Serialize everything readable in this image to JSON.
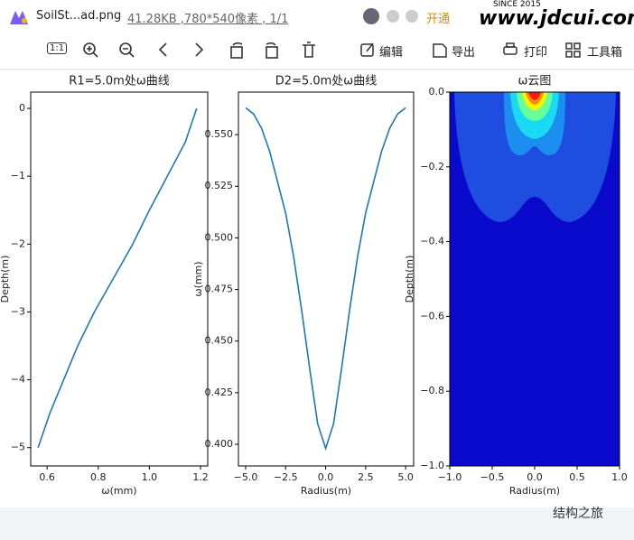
{
  "app": {
    "filename": "SoilSt...ad.png",
    "info": "41.28KB ,780*540像素 , 1/1",
    "open": "开通",
    "since": "SINCE 2015",
    "watermark": "www.jdcui.com"
  },
  "toolbar": {
    "zoom": "1:1",
    "edit": "编辑",
    "export": "导出",
    "print": "打印",
    "tools": "工具箱"
  },
  "footer": "结构之旅",
  "chart_data": [
    {
      "type": "line",
      "title": "R1=5.0m处ω曲线",
      "xlabel": "ω(mm)",
      "ylabel": "Depth(m)",
      "color": "#1f77b4",
      "x": [
        1.185,
        1.14,
        1.07,
        1.0,
        0.935,
        0.86,
        0.785,
        0.72,
        0.665,
        0.61,
        0.565
      ],
      "values": [
        0,
        -0.5,
        -1,
        -1.5,
        -2,
        -2.5,
        -3,
        -3.5,
        -4,
        -4.5,
        -5
      ],
      "xlim": [
        0.536,
        1.228
      ],
      "xticks": [
        0.6,
        0.8,
        {
          "value": 1,
          "label": "1.0"
        },
        1.2
      ],
      "ylim": [
        -5.27,
        0.24
      ],
      "yticks": [
        0,
        {
          "value": -1,
          "label": "−1"
        },
        {
          "value": -2,
          "label": "−2"
        },
        {
          "value": -3,
          "label": "−3"
        },
        {
          "value": -4,
          "label": "−4"
        },
        {
          "value": -5,
          "label": "−5"
        }
      ]
    },
    {
      "type": "line",
      "title": "D2=5.0m处ω曲线",
      "xlabel": "Radius(m)",
      "ylabel": "ω(mm)",
      "color": "#1f77b4",
      "x": [
        -5,
        -4.5,
        -4,
        -3.5,
        -3,
        -2.5,
        -2,
        -1.5,
        -1,
        -0.5,
        0,
        0.5,
        1,
        1.5,
        2,
        2.5,
        3,
        3.5,
        4,
        4.5,
        5
      ],
      "values": [
        0.563,
        0.56,
        0.553,
        0.542,
        0.527,
        0.512,
        0.491,
        0.465,
        0.437,
        0.41,
        0.398,
        0.41,
        0.437,
        0.465,
        0.491,
        0.512,
        0.527,
        0.542,
        0.553,
        0.56,
        0.563
      ],
      "xlim": [
        -5.45,
        5.5
      ],
      "xticks": [
        {
          "value": -5,
          "label": "−5.0"
        },
        {
          "value": -2.5,
          "label": "−2.5"
        },
        {
          "value": 0,
          "label": "0.0"
        },
        {
          "value": 2.5,
          "label": "2.5"
        },
        {
          "value": 5,
          "label": "5.0"
        }
      ],
      "ylim": [
        0.3895,
        0.5706
      ],
      "yticks": [
        {
          "value": 0.4,
          "label": "0.400"
        },
        0.425,
        {
          "value": 0.45,
          "label": "0.450"
        },
        0.475,
        {
          "value": 0.5,
          "label": "0.500"
        },
        0.525,
        {
          "value": 0.55,
          "label": "0.550"
        }
      ]
    },
    {
      "type": "contour",
      "title": "ω云图",
      "xlabel": "Radius(m)",
      "ylabel": "Depth(m)",
      "background": "#0a0acc",
      "colors": [
        "#1f4de0",
        "#1c8ef0",
        "#19d9f5",
        "#66ff99",
        "#f5f500",
        "#ff8a00",
        "#ff1a00"
      ],
      "xlim": [
        -1,
        1
      ],
      "xticks": [
        {
          "value": -1,
          "label": "−1.0"
        },
        {
          "value": -0.5,
          "label": "−0.5"
        },
        {
          "value": 0,
          "label": "0.0"
        },
        0.5,
        {
          "value": 1,
          "label": "1.0"
        }
      ],
      "ylim": [
        -1,
        0
      ],
      "yticks": [
        {
          "value": 0,
          "label": "0.0"
        },
        {
          "value": -0.2,
          "label": "−0.2"
        },
        {
          "value": -0.4,
          "label": "−0.4"
        },
        {
          "value": -0.6,
          "label": "−0.6"
        },
        {
          "value": -0.8,
          "label": "−0.8"
        },
        {
          "value": -1,
          "label": "−1.0"
        }
      ]
    }
  ]
}
